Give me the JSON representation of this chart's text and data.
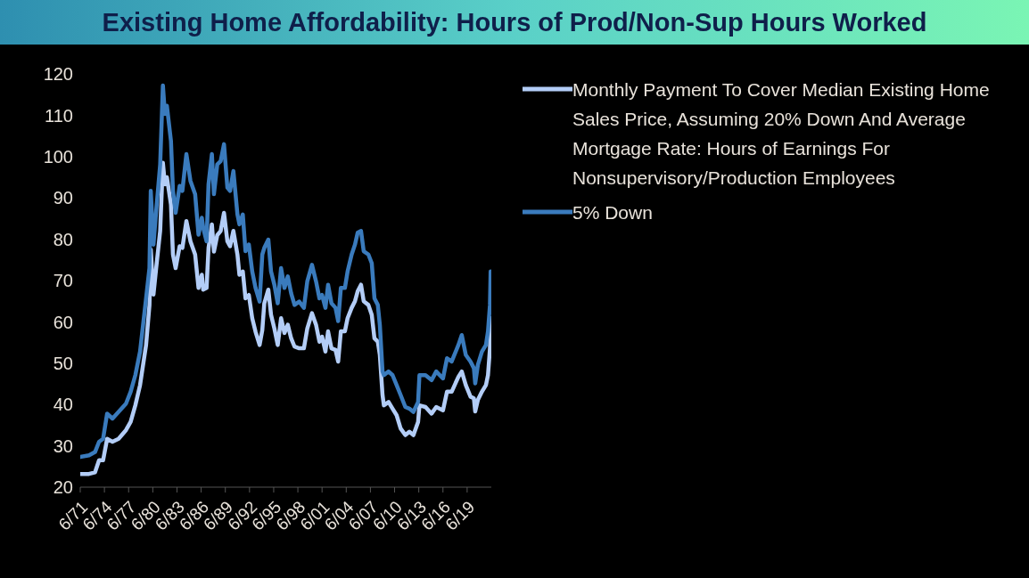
{
  "chart_data": {
    "type": "line",
    "title": "Existing Home Affordability: Hours of Prod/Non-Sup Hours Worked",
    "x": [
      "1971-06",
      "1972-07",
      "1973-04",
      "1973-10",
      "1974-04",
      "1974-10",
      "1975-06",
      "1976-03",
      "1977-02",
      "1977-09",
      "1978-04",
      "1978-11",
      "1979-08",
      "1980-01",
      "1980-03",
      "1980-07",
      "1980-11",
      "1981-05",
      "1981-09",
      "1981-12",
      "1982-03",
      "1982-09",
      "1982-12",
      "1983-04",
      "1983-10",
      "1984-02",
      "1984-08",
      "1985-02",
      "1985-09",
      "1986-02",
      "1986-07",
      "1986-09",
      "1987-02",
      "1987-05",
      "1987-10",
      "1988-01",
      "1988-06",
      "1988-11",
      "1989-04",
      "1989-09",
      "1990-01",
      "1990-06",
      "1990-12",
      "1991-03",
      "1991-08",
      "1991-12",
      "1992-05",
      "1992-10",
      "1993-03",
      "1993-09",
      "1994-01",
      "1994-04",
      "1994-10",
      "1995-02",
      "1995-07",
      "1995-12",
      "1996-05",
      "1996-10",
      "1997-03",
      "1997-08",
      "1998-01",
      "1998-08",
      "1999-03",
      "1999-08",
      "2000-03",
      "2000-09",
      "2001-02",
      "2001-06",
      "2001-11",
      "2002-03",
      "2002-08",
      "2003-02",
      "2003-06",
      "2003-10",
      "2004-04",
      "2004-08",
      "2005-02",
      "2005-07",
      "2005-11",
      "2006-04",
      "2006-08",
      "2007-03",
      "2007-08",
      "2007-12",
      "2008-05",
      "2008-08",
      "2008-12",
      "2009-02",
      "2009-09",
      "2010-03",
      "2010-09",
      "2011-03",
      "2011-10",
      "2012-04",
      "2012-10",
      "2013-05",
      "2013-07",
      "2014-04",
      "2015-01",
      "2015-08",
      "2016-06",
      "2016-12",
      "2017-07",
      "2018-05",
      "2018-10",
      "2019-04",
      "2019-11",
      "2020-04",
      "2020-06",
      "2020-10",
      "2021-04",
      "2021-10",
      "2022-01",
      "2022-04",
      "2022-05"
    ],
    "series": [
      {
        "name": "Monthly Payment To Cover Median Existing Home Sales Price, Assuming 20% Down And Average Mortgage Rate: Hours of Earnings For Nonsupervisory/Production Employees",
        "color": "#b3cdf7",
        "values": [
          23.2,
          23.2,
          23.6,
          26.5,
          26.5,
          31.7,
          31,
          31.7,
          33.8,
          35.8,
          39.8,
          44.7,
          54.4,
          64,
          77.5,
          66.6,
          73,
          82,
          98.5,
          93.3,
          95,
          88.4,
          76.3,
          73,
          78.3,
          77.9,
          84.4,
          79.5,
          76.3,
          68.2,
          71.4,
          67.8,
          68.2,
          77.9,
          83.6,
          77,
          81,
          82,
          86.4,
          79.5,
          78.3,
          82,
          76.3,
          71.4,
          72.2,
          65.7,
          66.5,
          60.9,
          57.6,
          54.4,
          58,
          64.5,
          67.8,
          61.7,
          58.4,
          54.4,
          60.9,
          57.3,
          59.3,
          56,
          54,
          53.6,
          53.6,
          58.4,
          62.1,
          59.3,
          55.2,
          56.4,
          52.8,
          57.7,
          53.6,
          53.2,
          50.4,
          57.7,
          57.7,
          60.9,
          63.4,
          65,
          67.4,
          69,
          65,
          64.1,
          61.7,
          56,
          55.2,
          52,
          42.3,
          39.8,
          40.6,
          39,
          37.4,
          34.2,
          32.6,
          33.4,
          32.6,
          35.8,
          39.8,
          39.4,
          37.8,
          39.4,
          38.6,
          43.1,
          43.1,
          46.7,
          48,
          44.7,
          41.9,
          41.5,
          38.3,
          41.1,
          43.1,
          44.7,
          47.1,
          53.6,
          60.9
        ]
      },
      {
        "name": "5% Down",
        "color": "#3a7bbd",
        "values": [
          27.3,
          27.7,
          28.5,
          31,
          31.7,
          37.8,
          36.6,
          38.2,
          40.2,
          43.1,
          47.1,
          52.8,
          65.7,
          73,
          91.7,
          78.7,
          86.8,
          98.1,
          117.2,
          110.3,
          112.3,
          103.8,
          91.7,
          86.4,
          92.9,
          91.7,
          100.6,
          94.1,
          90.9,
          81.1,
          85.2,
          82.8,
          79.5,
          93.3,
          100.6,
          90.9,
          98.1,
          98.9,
          103,
          92.5,
          91.7,
          96.5,
          86,
          83.6,
          86,
          77.1,
          78.7,
          72.2,
          68.2,
          64.9,
          76.3,
          77.9,
          79.9,
          72.2,
          69,
          64.5,
          73,
          68.2,
          71,
          66.9,
          64.1,
          64.9,
          63.4,
          69.8,
          73.8,
          69.8,
          65.7,
          66.5,
          63.4,
          69,
          64.5,
          63.4,
          60.2,
          68.2,
          68.2,
          72.2,
          76.3,
          78.7,
          81.6,
          82,
          77.1,
          76.3,
          74.2,
          65.7,
          64.1,
          59.3,
          48,
          47.1,
          48,
          47.1,
          44.7,
          42.3,
          39.4,
          39,
          38.2,
          40.6,
          47.1,
          47.1,
          45.9,
          48,
          46.3,
          51.2,
          50.4,
          54.4,
          56.8,
          52,
          50.4,
          48.8,
          45.1,
          49.6,
          52.8,
          54.4,
          57.7,
          64.1,
          72.2
        ]
      }
    ],
    "xlim": [
      "1971-06",
      "2022-06"
    ],
    "xticks": [
      {
        "value": "1971-06",
        "label": "6/71"
      },
      {
        "value": "1974-06",
        "label": "6/74"
      },
      {
        "value": "1977-06",
        "label": "6/77"
      },
      {
        "value": "1980-06",
        "label": "6/80"
      },
      {
        "value": "1983-06",
        "label": "6/83"
      },
      {
        "value": "1986-06",
        "label": "6/86"
      },
      {
        "value": "1989-06",
        "label": "6/89"
      },
      {
        "value": "1992-06",
        "label": "6/92"
      },
      {
        "value": "1995-06",
        "label": "6/95"
      },
      {
        "value": "1998-06",
        "label": "6/98"
      },
      {
        "value": "2001-06",
        "label": "6/01"
      },
      {
        "value": "2004-06",
        "label": "6/04"
      },
      {
        "value": "2007-06",
        "label": "6/07"
      },
      {
        "value": "2010-06",
        "label": "6/10"
      },
      {
        "value": "2013-06",
        "label": "6/13"
      },
      {
        "value": "2016-06",
        "label": "6/16"
      },
      {
        "value": "2019-06",
        "label": "6/19"
      }
    ],
    "ylim": [
      20,
      120
    ],
    "yticks": [
      20,
      30,
      40,
      50,
      60,
      70,
      80,
      90,
      100,
      110,
      120
    ],
    "grid": false,
    "legend": "top right",
    "marker": "none",
    "line_style": "solid"
  }
}
